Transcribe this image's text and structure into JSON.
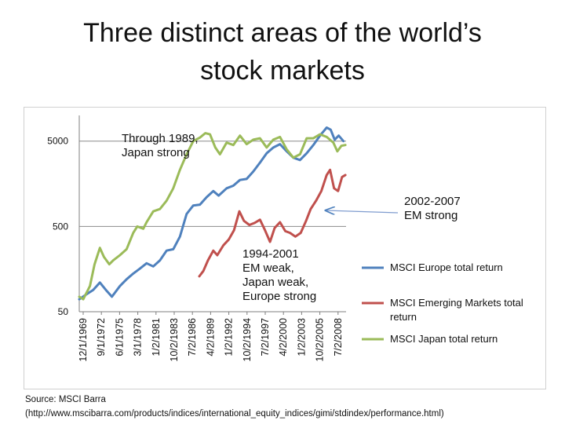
{
  "slide": {
    "title_line1": "Three distinct areas of the world’s",
    "title_line2": "stock markets",
    "source_line1": "Source: MSCI Barra",
    "source_line2": "(http://www.mscibarra.com/products/indices/international_equity_indices/gimi/stdindex/performance.html)"
  },
  "chart_data": {
    "type": "line",
    "title": "",
    "xlabel": "",
    "ylabel": "",
    "y_scale": "log",
    "ylim": [
      50,
      10000
    ],
    "yticks": [
      50,
      500,
      5000
    ],
    "ytick_labels": [
      "50",
      "500",
      "5000"
    ],
    "grid": true,
    "x_tick_labels": [
      "12/1/1969",
      "9/1/1972",
      "6/1/1975",
      "3/1/1978",
      "1/2/1981",
      "10/2/1983",
      "7/2/1986",
      "4/2/1989",
      "1/2/1992",
      "10/2/1994",
      "7/2/1997",
      "4/2/2000",
      "1/2/2003",
      "10/2/2005",
      "7/2/2008"
    ],
    "legend_position": "right",
    "series": [
      {
        "name": "MSCI Europe total return",
        "color": "#4f81bd",
        "x": [
          1969.9,
          1971,
          1972,
          1973,
          1974,
          1974.8,
          1976,
          1977,
          1978,
          1979,
          1980,
          1981,
          1982,
          1983,
          1984,
          1985,
          1986,
          1987,
          1988,
          1989,
          1990,
          1990.8,
          1992,
          1993,
          1994,
          1995,
          1996,
          1997,
          1998,
          1999,
          2000,
          2001,
          2002,
          2003,
          2004,
          2005,
          2006,
          2007,
          2007.6,
          2008.2,
          2008.8,
          2009.5
        ],
        "values": [
          70,
          80,
          90,
          110,
          88,
          75,
          100,
          120,
          140,
          160,
          185,
          170,
          200,
          260,
          270,
          380,
          700,
          880,
          900,
          1100,
          1300,
          1150,
          1400,
          1500,
          1750,
          1800,
          2200,
          2800,
          3600,
          4200,
          4600,
          3800,
          3200,
          3000,
          3600,
          4500,
          5800,
          7200,
          6800,
          5200,
          5800,
          5000
        ]
      },
      {
        "name": "MSCI Emerging Markets total return",
        "color": "#c0504d",
        "x": [
          1987.9,
          1988.5,
          1989.2,
          1990,
          1990.6,
          1991.5,
          1992.3,
          1993.1,
          1993.9,
          1994.6,
          1995.4,
          1996.2,
          1997,
          1997.7,
          1998.5,
          1999.2,
          2000,
          2000.8,
          2001.5,
          2002.3,
          2003.1,
          2003.9,
          2004.6,
          2005.4,
          2006.2,
          2007,
          2007.5,
          2008.1,
          2008.7,
          2009.3,
          2009.8
        ],
        "values": [
          130,
          150,
          200,
          260,
          230,
          300,
          350,
          450,
          750,
          580,
          520,
          550,
          600,
          460,
          330,
          480,
          560,
          440,
          420,
          380,
          420,
          580,
          800,
          1000,
          1300,
          2000,
          2300,
          1400,
          1300,
          1900,
          2000
        ]
      },
      {
        "name": "MSCI Japan total return",
        "color": "#9bbb59",
        "x": [
          1969.9,
          1970.5,
          1971.5,
          1972.2,
          1973,
          1973.6,
          1974.4,
          1975,
          1976,
          1977,
          1978,
          1978.6,
          1979.5,
          1980,
          1981,
          1982,
          1983,
          1984,
          1985,
          1986,
          1987,
          1988,
          1988.8,
          1989.5,
          1990.3,
          1991,
          1992,
          1993,
          1994,
          1995,
          1996,
          1997,
          1998,
          1999,
          2000,
          2001,
          2002,
          2003,
          2004,
          2005,
          2006,
          2007,
          2008,
          2008.6,
          2009.2,
          2009.8
        ],
        "values": [
          75,
          70,
          100,
          180,
          280,
          220,
          180,
          200,
          230,
          270,
          420,
          500,
          470,
          560,
          750,
          800,
          1000,
          1400,
          2300,
          3500,
          5000,
          5500,
          6200,
          6000,
          4200,
          3500,
          4800,
          4500,
          5800,
          4600,
          5200,
          5400,
          4200,
          5200,
          5600,
          4000,
          3200,
          3500,
          5400,
          5400,
          6000,
          5600,
          4800,
          3800,
          4400,
          4500
        ]
      }
    ],
    "annotations": [
      {
        "lines": [
          "Through 1989,",
          "Japan strong"
        ]
      },
      {
        "lines": [
          "1994-2001",
          "EM weak,",
          "Japan weak,",
          "Europe strong"
        ]
      },
      {
        "lines": [
          "2002-2007",
          "EM strong"
        ]
      }
    ]
  }
}
